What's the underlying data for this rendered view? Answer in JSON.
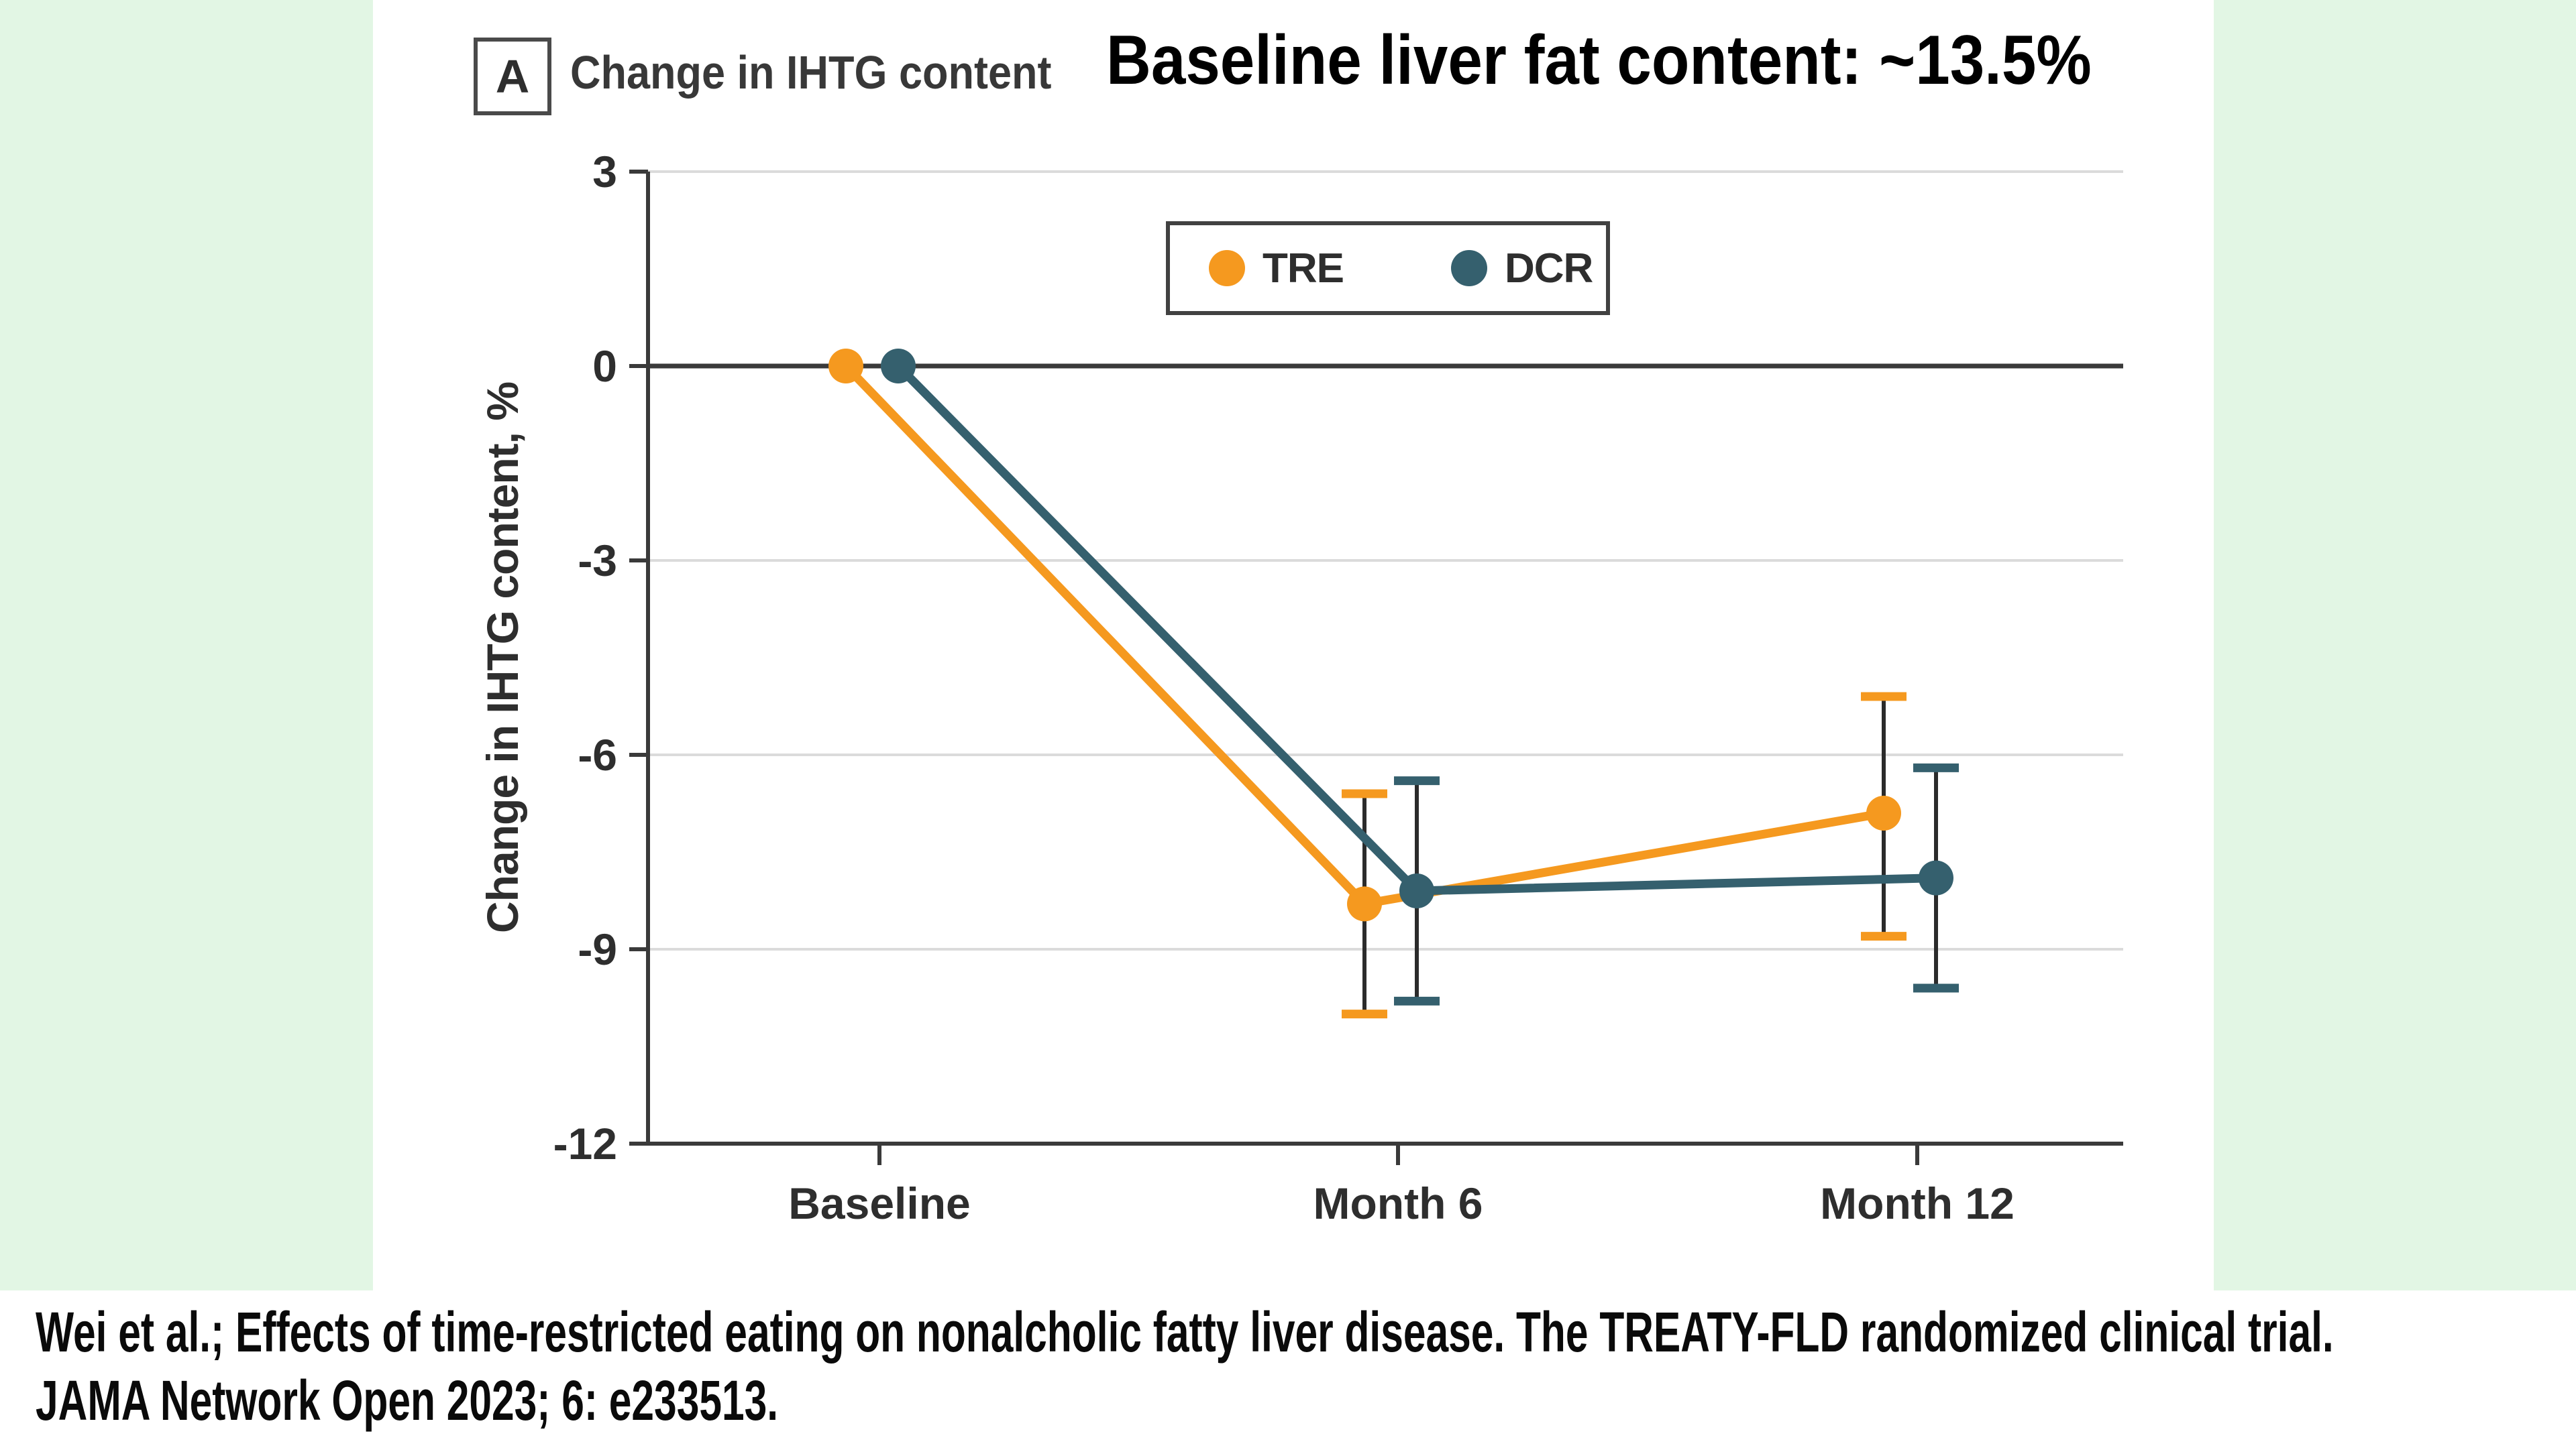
{
  "panel": {
    "label": "A",
    "title": "Change in IHTG content"
  },
  "main_title": "Baseline liver fat content: ~13.5%",
  "legend": {
    "items": [
      {
        "label": "TRE",
        "color": "#F5991F"
      },
      {
        "label": "DCR",
        "color": "#35606E"
      }
    ]
  },
  "chart_data": {
    "type": "line",
    "title": "Change in IHTG content",
    "categories": [
      "Baseline",
      "Month 6",
      "Month 12"
    ],
    "series": [
      {
        "name": "TRE",
        "color": "#F5991F",
        "values": [
          0,
          -8.3,
          -6.9
        ],
        "ci95": [
          null,
          [
            -10.0,
            -6.6
          ],
          [
            -8.8,
            -5.1
          ]
        ]
      },
      {
        "name": "DCR",
        "color": "#35606E",
        "values": [
          0,
          -8.1,
          -7.9
        ],
        "ci95": [
          null,
          [
            -9.8,
            -6.4
          ],
          [
            -9.6,
            -6.2
          ]
        ]
      }
    ],
    "ylabel": "Change in IHTG content, %",
    "xlabel": "",
    "ylim": [
      -12,
      3
    ],
    "yticks": [
      3,
      0,
      -3,
      -6,
      -9,
      -12
    ],
    "ytick_labels": [
      "3",
      "0",
      "-3",
      "-6",
      "-9",
      "-12"
    ],
    "gridline_values": [
      3,
      -3,
      -6,
      -9
    ],
    "zero_line": true,
    "grid": true,
    "legend_position": "top-center-inside",
    "error_bars": "95% CI"
  },
  "citation": {
    "line1": "Wei et al.; Effects of time-restricted eating on nonalcholic fatty liver disease. The TREATY-FLD randomized clinical trial.",
    "line2": "JAMA Network Open 2023; 6: e233513."
  },
  "colors": {
    "background_green": "#E2F6E4",
    "panel_white": "#FFFFFF",
    "tre_orange": "#F5991F",
    "dcr_teal": "#35606E",
    "axis": "#3A3A3A",
    "gridline": "#DBDBDB",
    "error_bar_stem": "#2B2B2B",
    "text": "#2E2E2E"
  }
}
